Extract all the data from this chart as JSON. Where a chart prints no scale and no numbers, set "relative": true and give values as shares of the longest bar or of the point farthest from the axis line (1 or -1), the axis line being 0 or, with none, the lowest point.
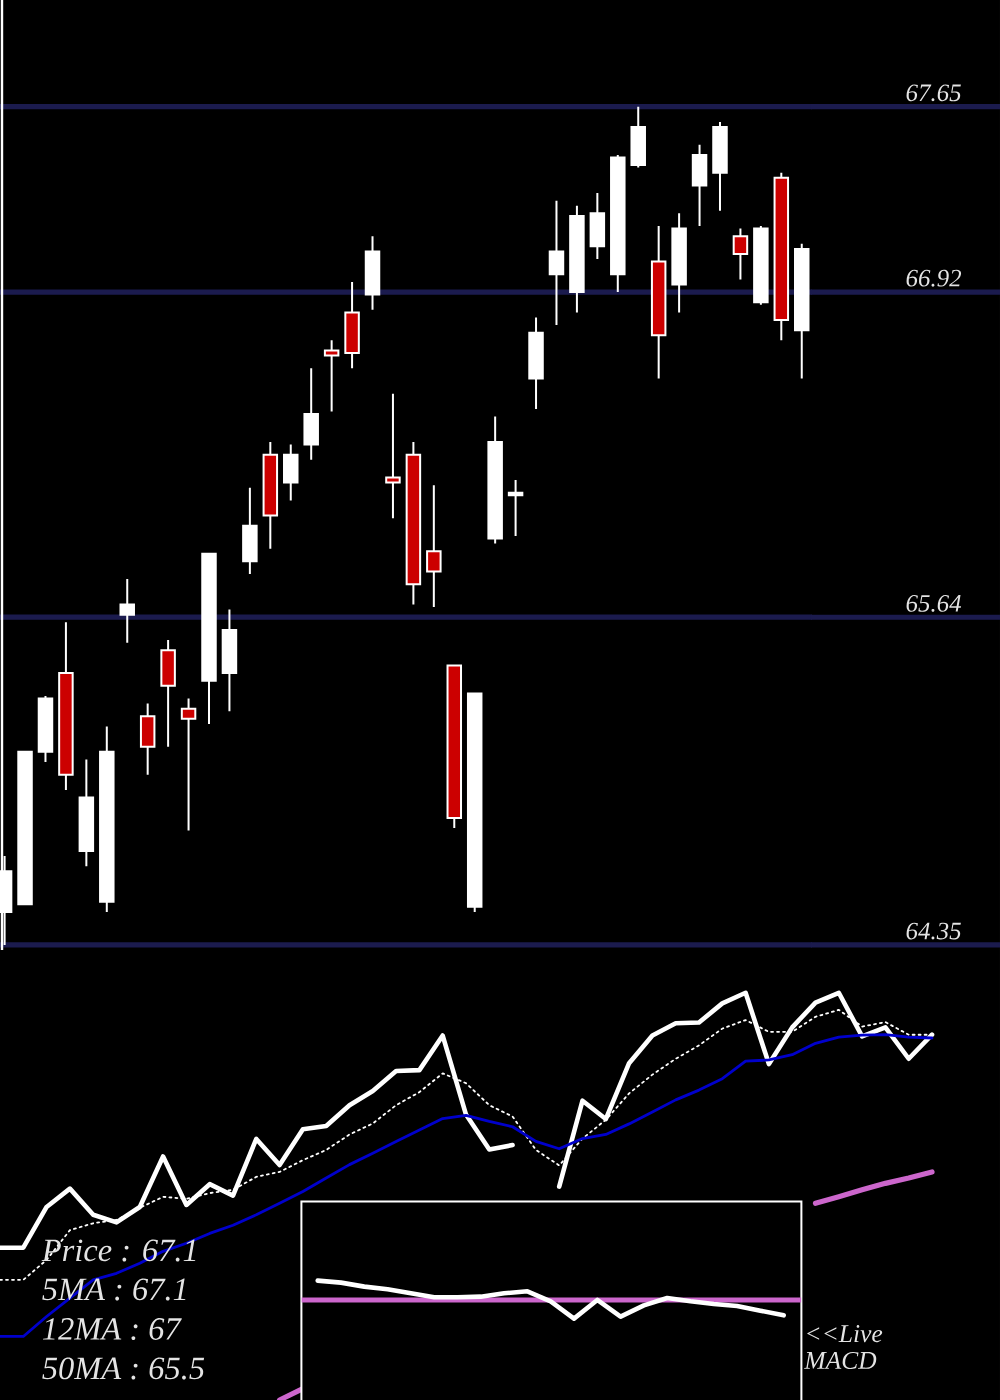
{
  "chart_data": [
    {
      "type": "candlestick",
      "categories": [
        null,
        null,
        null,
        null,
        null,
        null,
        null,
        null,
        null,
        null,
        null,
        null,
        null,
        null,
        null,
        null,
        null,
        null,
        null,
        null,
        null,
        null,
        null,
        null,
        null,
        null,
        null,
        null,
        null,
        null,
        null,
        null,
        null,
        null,
        null,
        null,
        null,
        null,
        null,
        null
      ],
      "ohlc": [
        [
          64.48,
          64.7,
          64.35,
          64.64
        ],
        [
          64.51,
          65.11,
          64.51,
          65.11
        ],
        [
          65.11,
          65.33,
          65.07,
          65.32
        ],
        [
          65.42,
          65.62,
          64.96,
          65.02
        ],
        [
          64.72,
          65.08,
          64.66,
          64.93
        ],
        [
          64.52,
          65.21,
          64.48,
          65.11
        ],
        [
          65.65,
          65.79,
          65.54,
          65.69
        ],
        [
          65.25,
          65.3,
          65.02,
          65.13
        ],
        [
          65.51,
          65.55,
          65.13,
          65.37
        ],
        [
          65.28,
          65.32,
          64.8,
          65.24
        ],
        [
          65.39,
          65.89,
          65.22,
          65.89
        ],
        [
          65.42,
          65.67,
          65.27,
          65.59
        ],
        [
          65.86,
          66.15,
          65.81,
          66.0
        ],
        [
          66.28,
          66.33,
          65.91,
          66.04
        ],
        [
          66.17,
          66.32,
          66.1,
          66.28
        ],
        [
          66.32,
          66.62,
          66.26,
          66.44
        ],
        [
          66.69,
          66.73,
          66.45,
          66.67
        ],
        [
          66.84,
          66.96,
          66.62,
          66.68
        ],
        [
          66.91,
          67.14,
          66.85,
          67.08
        ],
        [
          66.19,
          66.52,
          66.03,
          66.17
        ],
        [
          66.28,
          66.33,
          65.69,
          65.77
        ],
        [
          65.9,
          66.16,
          65.68,
          65.82
        ],
        [
          65.45,
          65.45,
          64.81,
          64.85
        ],
        [
          64.5,
          65.34,
          64.48,
          65.34
        ],
        [
          65.95,
          66.43,
          65.93,
          66.33
        ],
        [
          66.12,
          66.18,
          65.96,
          66.13
        ],
        [
          66.58,
          66.82,
          66.46,
          66.76
        ],
        [
          66.99,
          67.28,
          66.79,
          67.08
        ],
        [
          66.92,
          67.26,
          66.84,
          67.22
        ],
        [
          67.1,
          67.31,
          67.05,
          67.23
        ],
        [
          66.99,
          67.46,
          66.92,
          67.45
        ],
        [
          67.42,
          67.65,
          67.41,
          67.57
        ],
        [
          67.04,
          67.18,
          66.58,
          66.75
        ],
        [
          66.95,
          67.23,
          66.84,
          67.17
        ],
        [
          67.34,
          67.5,
          67.18,
          67.46
        ],
        [
          67.39,
          67.59,
          67.24,
          67.57
        ],
        [
          67.14,
          67.17,
          66.97,
          67.07
        ],
        [
          66.88,
          67.18,
          66.87,
          67.17
        ],
        [
          67.37,
          67.39,
          66.73,
          66.81
        ],
        [
          66.77,
          67.11,
          66.58,
          67.09
        ]
      ],
      "colors": [
        "#ffffff",
        "#ffffff",
        "#ffffff",
        "#cc0000",
        "#ffffff",
        "#ffffff",
        "#ffffff",
        "#cc0000",
        "#cc0000",
        "#cc0000",
        "#ffffff",
        "#ffffff",
        "#ffffff",
        "#cc0000",
        "#ffffff",
        "#ffffff",
        "#cc0000",
        "#cc0000",
        "#ffffff",
        "#cc0000",
        "#cc0000",
        "#cc0000",
        "#cc0000",
        "#ffffff",
        "#ffffff",
        "#ffffff",
        "#ffffff",
        "#ffffff",
        "#ffffff",
        "#ffffff",
        "#ffffff",
        "#ffffff",
        "#cc0000",
        "#ffffff",
        "#ffffff",
        "#ffffff",
        "#cc0000",
        "#ffffff",
        "#cc0000",
        "#ffffff"
      ],
      "ylim": [
        64.33,
        68.07
      ],
      "yticks": [
        67.65,
        66.92,
        65.64,
        64.35
      ],
      "grid": "y",
      "tick_labels": "y"
    },
    {
      "type": "line",
      "relative": true,
      "tick_labels": false,
      "categories": [
        null,
        null,
        null,
        null,
        null,
        null,
        null,
        null,
        null,
        null,
        null,
        null,
        null,
        null,
        null,
        null,
        null,
        null,
        null,
        null,
        null,
        null,
        null,
        null,
        null,
        null,
        null,
        null,
        null,
        null,
        null,
        null,
        null,
        null,
        null,
        null,
        null,
        null,
        null,
        null,
        null
      ],
      "series": [
        {
          "color": "#ffffff",
          "values": [
            0.374,
            0.374,
            0.474,
            0.519,
            0.455,
            0.436,
            0.474,
            0.598,
            0.479,
            0.53,
            0.502,
            0.641,
            0.577,
            0.665,
            0.673,
            0.724,
            0.759,
            0.808,
            0.81,
            0.895,
            0.701,
            0.615,
            0.626,
            null,
            0.524,
            0.735,
            0.69,
            0.827,
            0.895,
            0.925,
            0.927,
            0.974,
            1,
            0.825,
            0.915,
            0.976,
            1,
            0.893,
            0.915,
            0.838,
            0.897
          ]
        },
        {
          "color": "#ffffff",
          "line_style": "dotted",
          "values": [
            0.295,
            0.295,
            0.344,
            0.417,
            0.434,
            0.442,
            0.472,
            0.499,
            0.494,
            0.508,
            0.516,
            0.548,
            0.56,
            0.589,
            0.614,
            0.652,
            0.679,
            0.724,
            0.756,
            0.802,
            0.778,
            0.724,
            0.696,
            0.614,
            0.576,
            0.642,
            0.688,
            0.753,
            0.799,
            0.838,
            0.871,
            0.912,
            0.933,
            0.904,
            0.904,
            0.941,
            0.958,
            0.917,
            0.928,
            0.897,
            0.897
          ]
        },
        {
          "color": "#0000cc",
          "values": [
            0.156,
            0.156,
            0.205,
            0.25,
            0.295,
            0.311,
            0.336,
            0.365,
            0.385,
            0.409,
            0.429,
            0.455,
            0.483,
            0.512,
            0.545,
            0.578,
            0.606,
            0.635,
            0.663,
            0.691,
            0.699,
            0.684,
            0.671,
            0.635,
            0.617,
            0.642,
            0.652,
            0.678,
            0.707,
            0.737,
            0.761,
            0.789,
            0.832,
            0.835,
            0.848,
            0.876,
            0.891,
            0.896,
            0.897,
            0.891,
            0.889
          ]
        },
        {
          "color": "#cc66cc",
          "values": [
            null,
            null,
            null,
            null,
            null,
            null,
            null,
            null,
            null,
            null,
            null,
            null,
            0,
            0.028,
            null,
            null,
            null,
            null,
            null,
            null,
            null,
            null,
            null,
            null,
            null,
            null,
            null,
            null,
            null,
            null,
            null,
            null,
            null,
            null,
            null,
            0.483,
            0.499,
            0.516,
            0.532,
            0.545,
            0.56
          ]
        }
      ],
      "annotations": [
        "Price : 67.1",
        "5MA : 67.1",
        "12MA : 67",
        "50MA : 65.5"
      ]
    },
    {
      "type": "line",
      "relative": true,
      "tick_labels": false,
      "categories": [
        null,
        null,
        null,
        null,
        null,
        null,
        null,
        null,
        null,
        null,
        null,
        null,
        null,
        null,
        null,
        null,
        null,
        null,
        null,
        null,
        null
      ],
      "series": [
        {
          "color": "#ffffff",
          "values": [
            1,
            0.897,
            0.69,
            0.552,
            0.345,
            0.138,
            0.138,
            0.172,
            0.345,
            0.448,
            -0.069,
            -0.966,
            0,
            -0.862,
            -0.276,
            0.103,
            -0.069,
            -0.207,
            -0.31,
            -0.552,
            -0.793
          ]
        }
      ],
      "ref_lines": [
        {
          "axis": "y",
          "value": 0,
          "color": "#cc66cc"
        }
      ],
      "annotations": [
        "<<Live MACD"
      ]
    }
  ]
}
